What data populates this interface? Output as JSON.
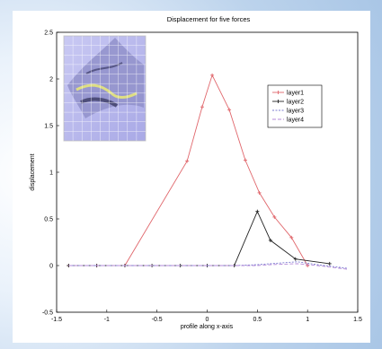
{
  "chart_data": {
    "type": "line",
    "title": "Displacement for five forces",
    "xlabel": "profile along x-axis",
    "ylabel": "displacement",
    "xlim": [
      -1.5,
      1.5
    ],
    "ylim": [
      -0.5,
      2.5
    ],
    "xticks": [
      "-1.5",
      "-1",
      "-0.5",
      "0",
      "0.5",
      "1",
      "1.5"
    ],
    "yticks": [
      "-0.5",
      "0",
      "0.5",
      "1",
      "1.5",
      "2",
      "2.5"
    ],
    "legend_position": "top-right",
    "grid": false,
    "series": [
      {
        "name": "layer1",
        "color": "#e0666b",
        "marker": "plus",
        "x": [
          -1.38,
          -1.1,
          -0.82,
          -0.2,
          -0.05,
          0.05,
          0.22,
          0.38,
          0.52,
          0.67,
          0.84,
          1.0
        ],
        "y": [
          0.0,
          0.0,
          0.0,
          1.12,
          1.7,
          2.04,
          1.67,
          1.13,
          0.78,
          0.52,
          0.3,
          0.0
        ]
      },
      {
        "name": "layer2",
        "color": "#222222",
        "marker": "plus",
        "x": [
          -1.38,
          -1.1,
          -0.82,
          -0.55,
          -0.27,
          0.0,
          0.27,
          0.5,
          0.63,
          0.88,
          1.22
        ],
        "y": [
          0.0,
          0.0,
          0.0,
          0.0,
          0.0,
          0.0,
          0.0,
          0.58,
          0.27,
          0.07,
          0.02
        ]
      },
      {
        "name": "layer3",
        "color": "#7b7bd0",
        "marker": "none",
        "x": [
          -1.38,
          -1.1,
          -0.82,
          -0.55,
          -0.27,
          0.0,
          0.27,
          0.5,
          0.63,
          0.9,
          1.1,
          1.4
        ],
        "y": [
          0.0,
          0.0,
          0.0,
          0.0,
          0.0,
          0.0,
          0.0,
          0.01,
          0.02,
          0.04,
          0.01,
          -0.03
        ]
      },
      {
        "name": "layer4",
        "color": "#b48ad8",
        "marker": "none",
        "x": [
          -1.38,
          -1.1,
          -0.82,
          -0.55,
          -0.27,
          0.0,
          0.27,
          0.5,
          0.63,
          0.9,
          1.1,
          1.4
        ],
        "y": [
          0.0,
          0.0,
          0.0,
          0.0,
          0.0,
          0.0,
          0.0,
          0.0,
          0.01,
          0.02,
          0.0,
          -0.04
        ]
      }
    ]
  },
  "inset": {
    "description_icon": "3d-mesh-surface-icon"
  }
}
